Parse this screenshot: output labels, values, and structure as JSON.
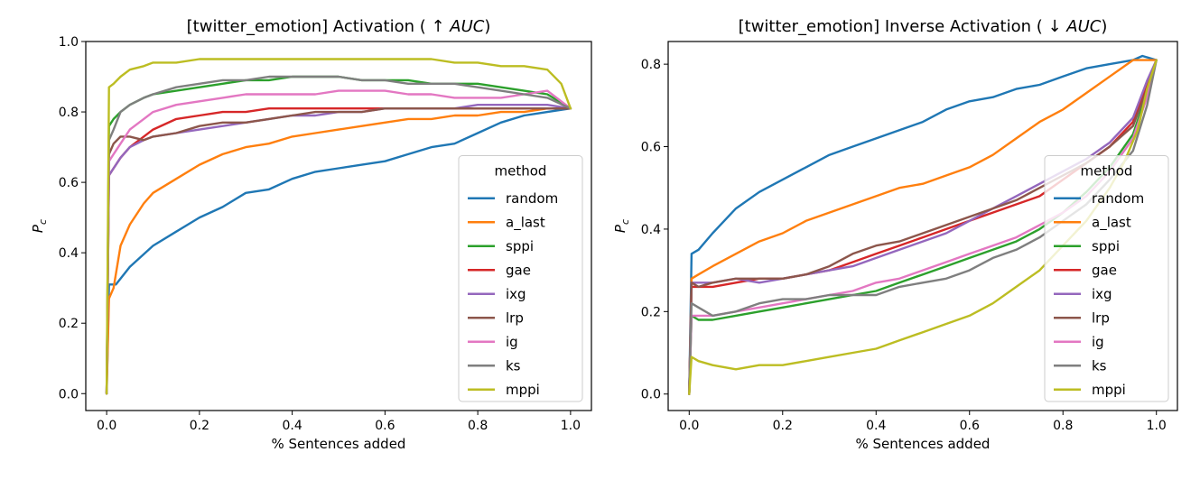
{
  "chart_data": [
    {
      "type": "line",
      "title_prefix": "[twitter_emotion] Activation (",
      "title_arrow": "↑",
      "title_metric": "AUC",
      "title_suffix": ")",
      "xlabel": "% Sentences added",
      "ylabel": "P",
      "ylabel_sub": "c",
      "xlim": [
        -0.045,
        1.045
      ],
      "ylim": [
        -0.048,
        1.0
      ],
      "xticks": [
        0.0,
        0.2,
        0.4,
        0.6,
        0.8,
        1.0
      ],
      "xtick_labels": [
        "0.0",
        "0.2",
        "0.4",
        "0.6",
        "0.8",
        "1.0"
      ],
      "yticks": [
        0.0,
        0.2,
        0.4,
        0.6,
        0.8,
        1.0
      ],
      "ytick_labels": [
        "0.0",
        "0.2",
        "0.4",
        "0.6",
        "0.8",
        "1.0"
      ],
      "legend_title": "method",
      "legend_placement": "lower-right",
      "series": [
        {
          "name": "random",
          "color": "#1f77b4",
          "x": [
            0.0,
            0.005,
            0.02,
            0.05,
            0.1,
            0.15,
            0.2,
            0.25,
            0.3,
            0.35,
            0.4,
            0.45,
            0.5,
            0.55,
            0.6,
            0.65,
            0.7,
            0.75,
            0.8,
            0.85,
            0.9,
            0.95,
            1.0
          ],
          "y": [
            0.0,
            0.31,
            0.31,
            0.36,
            0.42,
            0.46,
            0.5,
            0.53,
            0.57,
            0.58,
            0.61,
            0.63,
            0.64,
            0.65,
            0.66,
            0.68,
            0.7,
            0.71,
            0.74,
            0.77,
            0.79,
            0.8,
            0.81
          ]
        },
        {
          "name": "a_last",
          "color": "#ff7f0e",
          "x": [
            0.0,
            0.005,
            0.015,
            0.03,
            0.05,
            0.08,
            0.1,
            0.15,
            0.2,
            0.25,
            0.3,
            0.35,
            0.4,
            0.45,
            0.5,
            0.55,
            0.6,
            0.65,
            0.7,
            0.75,
            0.8,
            0.85,
            0.9,
            0.95,
            1.0
          ],
          "y": [
            0.0,
            0.27,
            0.3,
            0.42,
            0.48,
            0.54,
            0.57,
            0.61,
            0.65,
            0.68,
            0.7,
            0.71,
            0.73,
            0.74,
            0.75,
            0.76,
            0.77,
            0.78,
            0.78,
            0.79,
            0.79,
            0.8,
            0.8,
            0.81,
            0.81
          ]
        },
        {
          "name": "sppi",
          "color": "#2ca02c",
          "x": [
            0.0,
            0.005,
            0.015,
            0.03,
            0.05,
            0.08,
            0.1,
            0.15,
            0.2,
            0.25,
            0.3,
            0.35,
            0.4,
            0.45,
            0.5,
            0.55,
            0.6,
            0.65,
            0.7,
            0.75,
            0.8,
            0.85,
            0.9,
            0.95,
            1.0
          ],
          "y": [
            0.0,
            0.76,
            0.78,
            0.8,
            0.82,
            0.84,
            0.85,
            0.86,
            0.87,
            0.88,
            0.89,
            0.89,
            0.9,
            0.9,
            0.9,
            0.89,
            0.89,
            0.89,
            0.88,
            0.88,
            0.88,
            0.87,
            0.86,
            0.85,
            0.81
          ]
        },
        {
          "name": "gae",
          "color": "#d62728",
          "x": [
            0.0,
            0.005,
            0.015,
            0.03,
            0.05,
            0.08,
            0.1,
            0.15,
            0.2,
            0.25,
            0.3,
            0.35,
            0.4,
            0.45,
            0.5,
            0.55,
            0.6,
            0.65,
            0.7,
            0.75,
            0.8,
            0.85,
            0.9,
            0.95,
            1.0
          ],
          "y": [
            0.0,
            0.62,
            0.64,
            0.67,
            0.7,
            0.73,
            0.75,
            0.78,
            0.79,
            0.8,
            0.8,
            0.81,
            0.81,
            0.81,
            0.81,
            0.81,
            0.81,
            0.81,
            0.81,
            0.81,
            0.81,
            0.81,
            0.81,
            0.81,
            0.81
          ]
        },
        {
          "name": "ixg",
          "color": "#9467bd",
          "x": [
            0.0,
            0.005,
            0.015,
            0.03,
            0.05,
            0.08,
            0.1,
            0.15,
            0.2,
            0.25,
            0.3,
            0.35,
            0.4,
            0.45,
            0.5,
            0.55,
            0.6,
            0.65,
            0.7,
            0.75,
            0.8,
            0.85,
            0.9,
            0.95,
            1.0
          ],
          "y": [
            0.0,
            0.62,
            0.64,
            0.67,
            0.7,
            0.72,
            0.73,
            0.74,
            0.75,
            0.76,
            0.77,
            0.78,
            0.79,
            0.79,
            0.8,
            0.8,
            0.81,
            0.81,
            0.81,
            0.81,
            0.82,
            0.82,
            0.82,
            0.82,
            0.81
          ]
        },
        {
          "name": "lrp",
          "color": "#8c564b",
          "x": [
            0.0,
            0.005,
            0.015,
            0.03,
            0.05,
            0.08,
            0.1,
            0.15,
            0.2,
            0.25,
            0.3,
            0.35,
            0.4,
            0.45,
            0.5,
            0.55,
            0.6,
            0.65,
            0.7,
            0.75,
            0.8,
            0.85,
            0.9,
            0.95,
            1.0
          ],
          "y": [
            0.0,
            0.68,
            0.71,
            0.73,
            0.73,
            0.72,
            0.73,
            0.74,
            0.76,
            0.77,
            0.77,
            0.78,
            0.79,
            0.8,
            0.8,
            0.8,
            0.81,
            0.81,
            0.81,
            0.81,
            0.81,
            0.81,
            0.81,
            0.81,
            0.81
          ]
        },
        {
          "name": "ig",
          "color": "#e377c2",
          "x": [
            0.0,
            0.005,
            0.015,
            0.03,
            0.05,
            0.08,
            0.1,
            0.15,
            0.2,
            0.25,
            0.3,
            0.35,
            0.4,
            0.45,
            0.5,
            0.55,
            0.6,
            0.65,
            0.7,
            0.75,
            0.8,
            0.85,
            0.9,
            0.95,
            1.0
          ],
          "y": [
            0.0,
            0.66,
            0.68,
            0.71,
            0.75,
            0.78,
            0.8,
            0.82,
            0.83,
            0.84,
            0.85,
            0.85,
            0.85,
            0.85,
            0.86,
            0.86,
            0.86,
            0.85,
            0.85,
            0.84,
            0.84,
            0.84,
            0.85,
            0.86,
            0.81
          ]
        },
        {
          "name": "ks",
          "color": "#7f7f7f",
          "x": [
            0.0,
            0.005,
            0.015,
            0.03,
            0.05,
            0.08,
            0.1,
            0.15,
            0.2,
            0.25,
            0.3,
            0.35,
            0.4,
            0.45,
            0.5,
            0.55,
            0.6,
            0.65,
            0.7,
            0.75,
            0.8,
            0.85,
            0.9,
            0.95,
            1.0
          ],
          "y": [
            0.0,
            0.72,
            0.75,
            0.8,
            0.82,
            0.84,
            0.85,
            0.87,
            0.88,
            0.89,
            0.89,
            0.9,
            0.9,
            0.9,
            0.9,
            0.89,
            0.89,
            0.88,
            0.88,
            0.88,
            0.87,
            0.86,
            0.85,
            0.84,
            0.81
          ]
        },
        {
          "name": "mppi",
          "color": "#bcbd22",
          "x": [
            0.0,
            0.005,
            0.015,
            0.03,
            0.05,
            0.08,
            0.1,
            0.15,
            0.2,
            0.25,
            0.3,
            0.35,
            0.4,
            0.45,
            0.5,
            0.55,
            0.6,
            0.65,
            0.7,
            0.75,
            0.8,
            0.85,
            0.9,
            0.95,
            0.98,
            1.0
          ],
          "y": [
            0.0,
            0.87,
            0.88,
            0.9,
            0.92,
            0.93,
            0.94,
            0.94,
            0.95,
            0.95,
            0.95,
            0.95,
            0.95,
            0.95,
            0.95,
            0.95,
            0.95,
            0.95,
            0.95,
            0.94,
            0.94,
            0.93,
            0.93,
            0.92,
            0.88,
            0.81
          ]
        }
      ]
    },
    {
      "type": "line",
      "title_prefix": "[twitter_emotion] Inverse Activation (",
      "title_arrow": "↓",
      "title_metric": "AUC",
      "title_suffix": ")",
      "xlabel": "% Sentences added",
      "ylabel": "P",
      "ylabel_sub": "c",
      "xlim": [
        -0.045,
        1.045
      ],
      "ylim": [
        -0.04,
        0.855
      ],
      "xticks": [
        0.0,
        0.2,
        0.4,
        0.6,
        0.8,
        1.0
      ],
      "xtick_labels": [
        "0.0",
        "0.2",
        "0.4",
        "0.6",
        "0.8",
        "1.0"
      ],
      "yticks": [
        0.0,
        0.2,
        0.4,
        0.6,
        0.8
      ],
      "ytick_labels": [
        "0.0",
        "0.2",
        "0.4",
        "0.6",
        "0.8"
      ],
      "legend_title": "method",
      "legend_placement": "lower-right",
      "series": [
        {
          "name": "random",
          "color": "#1f77b4",
          "x": [
            0.0,
            0.005,
            0.02,
            0.05,
            0.1,
            0.15,
            0.2,
            0.25,
            0.3,
            0.35,
            0.4,
            0.45,
            0.5,
            0.55,
            0.6,
            0.65,
            0.7,
            0.75,
            0.8,
            0.85,
            0.9,
            0.95,
            0.97,
            1.0
          ],
          "y": [
            0.0,
            0.34,
            0.35,
            0.39,
            0.45,
            0.49,
            0.52,
            0.55,
            0.58,
            0.6,
            0.62,
            0.64,
            0.66,
            0.69,
            0.71,
            0.72,
            0.74,
            0.75,
            0.77,
            0.79,
            0.8,
            0.81,
            0.82,
            0.81
          ]
        },
        {
          "name": "a_last",
          "color": "#ff7f0e",
          "x": [
            0.0,
            0.005,
            0.02,
            0.05,
            0.1,
            0.15,
            0.2,
            0.25,
            0.3,
            0.35,
            0.4,
            0.45,
            0.5,
            0.55,
            0.6,
            0.65,
            0.7,
            0.75,
            0.8,
            0.85,
            0.9,
            0.95,
            1.0
          ],
          "y": [
            0.0,
            0.28,
            0.29,
            0.31,
            0.34,
            0.37,
            0.39,
            0.42,
            0.44,
            0.46,
            0.48,
            0.5,
            0.51,
            0.53,
            0.55,
            0.58,
            0.62,
            0.66,
            0.69,
            0.73,
            0.77,
            0.81,
            0.81
          ]
        },
        {
          "name": "sppi",
          "color": "#2ca02c",
          "x": [
            0.0,
            0.005,
            0.02,
            0.05,
            0.1,
            0.15,
            0.2,
            0.25,
            0.3,
            0.35,
            0.4,
            0.45,
            0.5,
            0.55,
            0.6,
            0.65,
            0.7,
            0.75,
            0.8,
            0.85,
            0.9,
            0.95,
            0.98,
            1.0
          ],
          "y": [
            0.0,
            0.19,
            0.18,
            0.18,
            0.19,
            0.2,
            0.21,
            0.22,
            0.23,
            0.24,
            0.25,
            0.27,
            0.29,
            0.31,
            0.33,
            0.35,
            0.37,
            0.4,
            0.44,
            0.49,
            0.55,
            0.63,
            0.73,
            0.81
          ]
        },
        {
          "name": "gae",
          "color": "#d62728",
          "x": [
            0.0,
            0.005,
            0.02,
            0.05,
            0.1,
            0.15,
            0.2,
            0.25,
            0.3,
            0.35,
            0.4,
            0.45,
            0.5,
            0.55,
            0.6,
            0.65,
            0.7,
            0.75,
            0.8,
            0.85,
            0.9,
            0.95,
            0.98,
            1.0
          ],
          "y": [
            0.0,
            0.26,
            0.26,
            0.26,
            0.27,
            0.28,
            0.28,
            0.29,
            0.3,
            0.32,
            0.34,
            0.36,
            0.38,
            0.4,
            0.42,
            0.44,
            0.46,
            0.48,
            0.52,
            0.56,
            0.6,
            0.66,
            0.75,
            0.81
          ]
        },
        {
          "name": "ixg",
          "color": "#9467bd",
          "x": [
            0.0,
            0.005,
            0.02,
            0.05,
            0.1,
            0.15,
            0.2,
            0.25,
            0.3,
            0.35,
            0.4,
            0.45,
            0.5,
            0.55,
            0.6,
            0.65,
            0.7,
            0.75,
            0.8,
            0.85,
            0.9,
            0.95,
            0.98,
            1.0
          ],
          "y": [
            0.0,
            0.27,
            0.27,
            0.27,
            0.28,
            0.27,
            0.28,
            0.29,
            0.3,
            0.31,
            0.33,
            0.35,
            0.37,
            0.39,
            0.42,
            0.45,
            0.48,
            0.51,
            0.54,
            0.57,
            0.61,
            0.67,
            0.76,
            0.81
          ]
        },
        {
          "name": "lrp",
          "color": "#8c564b",
          "x": [
            0.0,
            0.005,
            0.02,
            0.05,
            0.1,
            0.15,
            0.2,
            0.25,
            0.3,
            0.35,
            0.4,
            0.45,
            0.5,
            0.55,
            0.6,
            0.65,
            0.7,
            0.75,
            0.8,
            0.85,
            0.9,
            0.95,
            0.98,
            1.0
          ],
          "y": [
            0.0,
            0.27,
            0.26,
            0.27,
            0.28,
            0.28,
            0.28,
            0.29,
            0.31,
            0.34,
            0.36,
            0.37,
            0.39,
            0.41,
            0.43,
            0.45,
            0.47,
            0.5,
            0.53,
            0.56,
            0.6,
            0.65,
            0.74,
            0.81
          ]
        },
        {
          "name": "ig",
          "color": "#e377c2",
          "x": [
            0.0,
            0.005,
            0.02,
            0.05,
            0.1,
            0.15,
            0.2,
            0.25,
            0.3,
            0.35,
            0.4,
            0.45,
            0.5,
            0.55,
            0.6,
            0.65,
            0.7,
            0.75,
            0.8,
            0.85,
            0.9,
            0.95,
            0.98,
            1.0
          ],
          "y": [
            0.0,
            0.19,
            0.19,
            0.19,
            0.2,
            0.21,
            0.22,
            0.23,
            0.24,
            0.25,
            0.27,
            0.28,
            0.3,
            0.32,
            0.34,
            0.36,
            0.38,
            0.41,
            0.44,
            0.48,
            0.54,
            0.62,
            0.72,
            0.81
          ]
        },
        {
          "name": "ks",
          "color": "#7f7f7f",
          "x": [
            0.0,
            0.005,
            0.02,
            0.05,
            0.1,
            0.15,
            0.2,
            0.25,
            0.3,
            0.35,
            0.4,
            0.45,
            0.5,
            0.55,
            0.6,
            0.65,
            0.7,
            0.75,
            0.8,
            0.85,
            0.9,
            0.95,
            0.98,
            1.0
          ],
          "y": [
            0.0,
            0.22,
            0.21,
            0.19,
            0.2,
            0.22,
            0.23,
            0.23,
            0.24,
            0.24,
            0.24,
            0.26,
            0.27,
            0.28,
            0.3,
            0.33,
            0.35,
            0.38,
            0.42,
            0.46,
            0.52,
            0.59,
            0.7,
            0.81
          ]
        },
        {
          "name": "mppi",
          "color": "#bcbd22",
          "x": [
            0.0,
            0.005,
            0.02,
            0.05,
            0.1,
            0.15,
            0.2,
            0.25,
            0.3,
            0.35,
            0.4,
            0.45,
            0.5,
            0.55,
            0.6,
            0.65,
            0.7,
            0.75,
            0.8,
            0.85,
            0.9,
            0.93,
            0.96,
            0.98,
            1.0
          ],
          "y": [
            0.0,
            0.09,
            0.08,
            0.07,
            0.06,
            0.07,
            0.07,
            0.08,
            0.09,
            0.1,
            0.11,
            0.13,
            0.15,
            0.17,
            0.19,
            0.22,
            0.26,
            0.3,
            0.36,
            0.42,
            0.5,
            0.56,
            0.64,
            0.74,
            0.81
          ]
        }
      ]
    }
  ]
}
